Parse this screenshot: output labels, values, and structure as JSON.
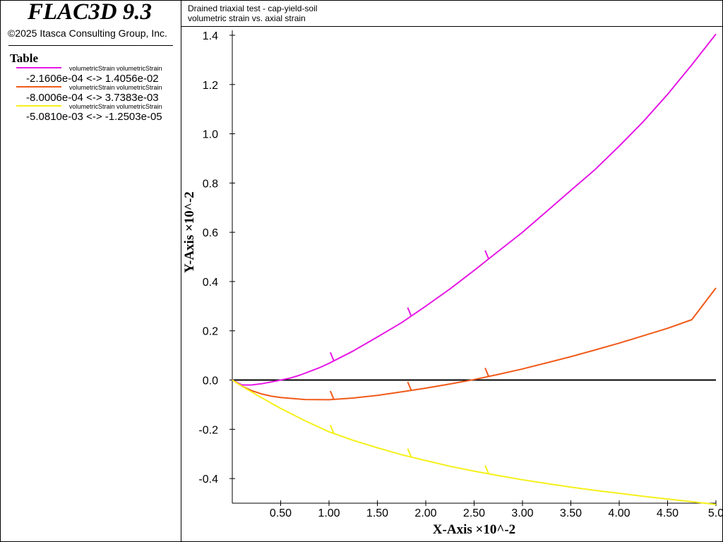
{
  "app": {
    "title": "FLAC3D 9.3",
    "copyright": "©2025 Itasca Consulting Group, Inc."
  },
  "legend": {
    "heading": "Table",
    "items": [
      {
        "caption": "volumetricStrain volumetricStrain",
        "range": "-2.1606e-04 <-> 1.4056e-02",
        "color": "#e619e6"
      },
      {
        "caption": "volumetricStrain volumetricStrain",
        "range": "-8.0006e-04 <-> 3.7383e-03",
        "color": "#f05a19"
      },
      {
        "caption": "volumetricStrain volumetricStrain",
        "range": "-5.0810e-03 <-> -1.2503e-05",
        "color": "#f5f019"
      }
    ]
  },
  "plot": {
    "title_line1": "Drained triaxial test - cap-yield-soil",
    "title_line2": "volumetric strain vs. axial strain"
  },
  "chart_data": {
    "type": "line",
    "xlabel": "X-Axis ×10^-2",
    "ylabel": "Y-Axis ×10^-2",
    "xlim": [
      0,
      5.0
    ],
    "ylim": [
      -0.5,
      1.42
    ],
    "x_ticks": [
      0.5,
      1.0,
      1.5,
      2.0,
      2.5,
      3.0,
      3.5,
      4.0,
      4.5,
      5.0
    ],
    "x_tick_labels": [
      "0.50",
      "1.00",
      "1.50",
      "2.00",
      "2.50",
      "3.00",
      "3.50",
      "4.00",
      "4.50",
      "5.0"
    ],
    "y_ticks": [
      -0.4,
      -0.2,
      0.0,
      0.2,
      0.4,
      0.6,
      0.8,
      1.0,
      1.2,
      1.4
    ],
    "y_tick_labels": [
      "-0.4",
      "-0.2",
      "0.0",
      "0.2",
      "0.4",
      "0.6",
      "0.8",
      "1.0",
      "1.2",
      "1.4"
    ],
    "zero_line": true,
    "grid": false,
    "series": [
      {
        "color": "#e619e6",
        "x": [
          0,
          0.1,
          0.2,
          0.3,
          0.4,
          0.5,
          0.6,
          0.7,
          0.8,
          0.9,
          1.0,
          1.1,
          1.25,
          1.5,
          1.75,
          2.0,
          2.25,
          2.5,
          2.75,
          3.0,
          3.25,
          3.5,
          3.75,
          4.0,
          4.25,
          4.5,
          4.75,
          5.0
        ],
        "y": [
          0.0,
          -0.02,
          -0.02,
          -0.015,
          -0.008,
          0.0,
          0.008,
          0.02,
          0.035,
          0.05,
          0.068,
          0.088,
          0.118,
          0.175,
          0.233,
          0.3,
          0.37,
          0.445,
          0.523,
          0.6,
          0.685,
          0.77,
          0.855,
          0.95,
          1.05,
          1.16,
          1.28,
          1.405
        ],
        "markers_x": [
          1.05,
          1.85,
          2.65
        ]
      },
      {
        "color": "#f05a19",
        "x": [
          0,
          0.1,
          0.2,
          0.3,
          0.4,
          0.5,
          0.75,
          1.0,
          1.25,
          1.5,
          1.75,
          2.0,
          2.25,
          2.5,
          2.75,
          3.0,
          3.25,
          3.5,
          3.75,
          4.0,
          4.25,
          4.5,
          4.75,
          5.0
        ],
        "y": [
          0.0,
          -0.025,
          -0.043,
          -0.056,
          -0.065,
          -0.071,
          -0.079,
          -0.08,
          -0.073,
          -0.062,
          -0.048,
          -0.033,
          -0.016,
          0.002,
          0.023,
          0.045,
          0.07,
          0.095,
          0.122,
          0.15,
          0.18,
          0.21,
          0.245,
          0.374
        ],
        "markers_x": [
          1.05,
          1.85,
          2.65
        ]
      },
      {
        "color": "#f5f019",
        "x": [
          0,
          0.1,
          0.25,
          0.5,
          0.75,
          1.0,
          1.25,
          1.5,
          1.75,
          2.0,
          2.25,
          2.5,
          2.75,
          3.0,
          3.25,
          3.5,
          3.75,
          4.0,
          4.25,
          4.5,
          4.75,
          5.0
        ],
        "y": [
          0.0,
          -0.025,
          -0.06,
          -0.115,
          -0.165,
          -0.21,
          -0.245,
          -0.275,
          -0.303,
          -0.327,
          -0.35,
          -0.37,
          -0.388,
          -0.405,
          -0.42,
          -0.435,
          -0.448,
          -0.46,
          -0.472,
          -0.483,
          -0.494,
          -0.505
        ],
        "markers_x": [
          1.05,
          1.85,
          2.65
        ]
      }
    ]
  }
}
